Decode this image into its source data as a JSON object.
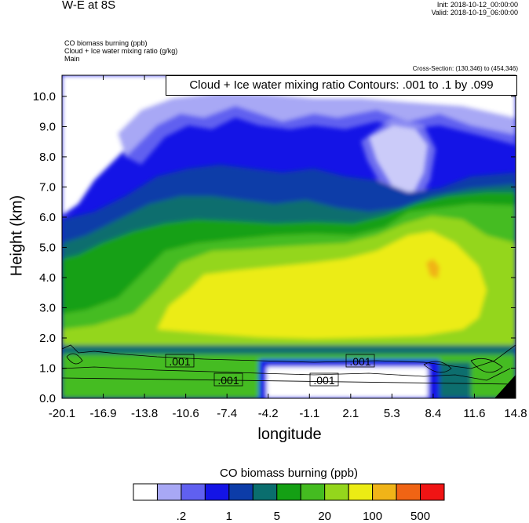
{
  "header": {
    "title": "W-E at 8S",
    "init": "Init: 2018-10-12_00:00:00",
    "valid": "Valid: 2018-10-19_06:00:00",
    "fields": [
      "CO biomass burning   (ppb)",
      "Cloud + Ice water mixing ratio   (g/kg)",
      "Main"
    ],
    "cross_section": "Cross-Section: (130,346) to (454,346)"
  },
  "contour_box": "Cloud + Ice water mixing ratio Contours: .001 to .1 by .099",
  "chart_data": {
    "type": "heatmap",
    "xlabel": "longitude",
    "ylabel": "Height (km)",
    "x_ticks": [
      "-20.1",
      "-16.9",
      "-13.8",
      "-10.6",
      "-7.4",
      "-4.2",
      "-1.1",
      "2.1",
      "5.3",
      "8.4",
      "11.6",
      "14.8"
    ],
    "y_ticks": [
      "0.0",
      "1.0",
      "2.0",
      "3.0",
      "4.0",
      "5.0",
      "6.0",
      "7.0",
      "8.0",
      "9.0",
      "10.0"
    ],
    "ylim": [
      0,
      10.7
    ],
    "contour_labels": [
      ".001",
      ".001",
      ".001",
      ".001"
    ],
    "colorbar": {
      "title": "CO biomass burning  (ppb)",
      "tick_labels": [
        ".2",
        "1",
        "5",
        "20",
        "100",
        "500"
      ],
      "colors": [
        "#ffffff",
        "#a8a8f5",
        "#6060f0",
        "#1414e6",
        "#0c3ca8",
        "#0a6e6e",
        "#14a014",
        "#44bc20",
        "#94d61c",
        "#ecec14",
        "#f0b418",
        "#f06414",
        "#f01414"
      ]
    }
  }
}
